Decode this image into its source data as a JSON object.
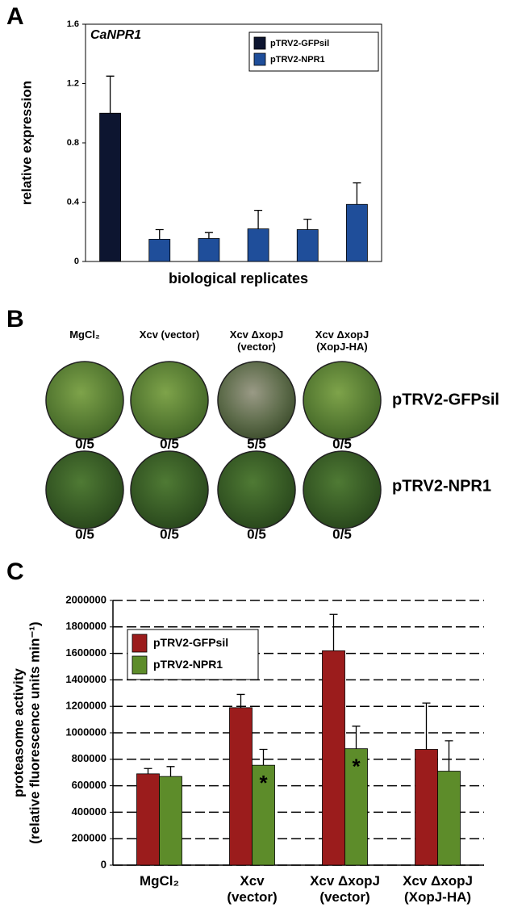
{
  "panel_labels": [
    "A",
    "B",
    "C"
  ],
  "chart_data": [
    {
      "type": "bar",
      "title": "CaNPR1",
      "xlabel": "biological replicates",
      "ylabel": "relative expression",
      "categories": [
        null,
        null,
        null,
        null,
        null,
        null
      ],
      "series": [
        {
          "name": "pTRV2-GFPsil",
          "color": "#0d1530",
          "values": [
            1.0,
            null,
            null,
            null,
            null,
            null
          ],
          "errors": [
            0.25,
            null,
            null,
            null,
            null,
            null
          ]
        },
        {
          "name": "pTRV2-NPR1",
          "color": "#1f4e9a",
          "values": [
            null,
            0.15,
            0.155,
            0.22,
            0.215,
            0.385
          ],
          "errors": [
            null,
            0.065,
            0.04,
            0.125,
            0.07,
            0.145
          ]
        }
      ],
      "ylim": [
        0,
        1.6
      ],
      "yticks": [
        0,
        0.4,
        0.8,
        1.2,
        1.6
      ],
      "grid": false,
      "legend": "upper right"
    },
    {
      "type": "bar",
      "ylabel": [
        "proteasome activity",
        "(relative fluorescence units min⁻¹)"
      ],
      "categories": [
        "MgCl₂",
        "Xcv\n(vector)",
        "Xcv ΔxopJ\n(vector)",
        "Xcv ΔxopJ\n(XopJ-HA)"
      ],
      "series": [
        {
          "name": "pTRV2-GFPsil",
          "color": "#9b1c1c",
          "values": [
            690000,
            1190000,
            1620000,
            875000
          ],
          "errors": [
            40000,
            100000,
            275000,
            350000
          ]
        },
        {
          "name": "pTRV2-NPR1",
          "color": "#5d8c2a",
          "values": [
            670000,
            755000,
            880000,
            710000
          ],
          "errors": [
            75000,
            120000,
            170000,
            230000
          ]
        }
      ],
      "annotations": [
        {
          "text": "*",
          "category": 1,
          "series": 1
        },
        {
          "text": "*",
          "category": 2,
          "series": 1
        }
      ],
      "ylim": [
        0,
        2000000
      ],
      "yticks": [
        0,
        200000,
        400000,
        600000,
        800000,
        1000000,
        1200000,
        1400000,
        1600000,
        1800000,
        2000000
      ],
      "grid": true,
      "legend": "upper left"
    }
  ],
  "panel_b": {
    "columns": [
      "MgCl₂",
      "Xcv (vector)",
      "Xcv ΔxopJ\n(vector)",
      "Xcv ΔxopJ\n(XopJ-HA)"
    ],
    "rows": [
      {
        "name": "pTRV2-GFPsil",
        "scores": [
          "0/5",
          "0/5",
          "5/5",
          "0/5"
        ]
      },
      {
        "name": "pTRV2-NPR1",
        "scores": [
          "0/5",
          "0/5",
          "0/5",
          "0/5"
        ]
      }
    ]
  }
}
